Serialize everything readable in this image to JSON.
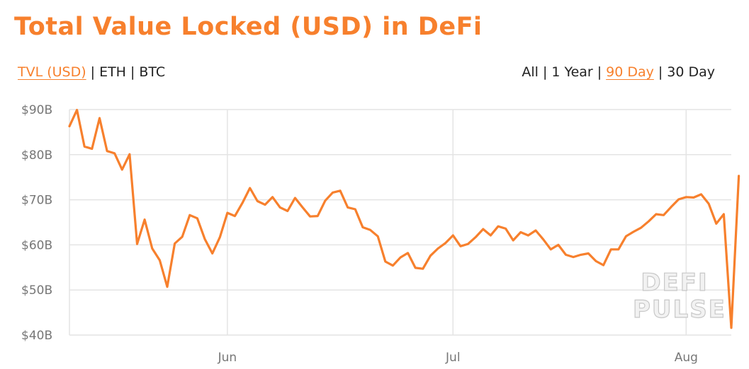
{
  "title": "Total Value Locked (USD) in DeFi",
  "metric_toggles": [
    {
      "label": "TVL (USD)",
      "active": true
    },
    {
      "label": "ETH",
      "active": false
    },
    {
      "label": "BTC",
      "active": false
    }
  ],
  "range_toggles": [
    {
      "label": "All",
      "active": false
    },
    {
      "label": "1 Year",
      "active": false
    },
    {
      "label": "90 Day",
      "active": true
    },
    {
      "label": "30 Day",
      "active": false
    }
  ],
  "separator": "|",
  "watermark": {
    "line1": "DEFI",
    "line2": "PULSE"
  },
  "colors": {
    "accent": "#f7802d",
    "grid": "#e4e4e4",
    "tick": "#777777"
  },
  "chart_data": {
    "type": "line",
    "title": "Total Value Locked (USD) in DeFi",
    "xlabel": "",
    "ylabel": "",
    "x_ticks": [
      {
        "label": "Jun",
        "x": 21
      },
      {
        "label": "Jul",
        "x": 51
      },
      {
        "label": "Aug",
        "x": 82
      }
    ],
    "y_ticks": [
      {
        "label": "$90B",
        "value": 90
      },
      {
        "label": "$80B",
        "value": 80
      },
      {
        "label": "$70B",
        "value": 70
      },
      {
        "label": "$60B",
        "value": 60
      },
      {
        "label": "$50B",
        "value": 50
      },
      {
        "label": "$40B",
        "value": 40
      }
    ],
    "ylim": [
      40,
      90
    ],
    "xlim": [
      0,
      88
    ],
    "grid": true,
    "units": "USD billions",
    "series": [
      {
        "values": [
          86.3,
          89.9,
          81.8,
          81.3,
          88.1,
          80.8,
          80.3,
          76.7,
          80.1,
          60.2,
          65.6,
          59.2,
          56.6,
          50.7,
          60.3,
          61.8,
          66.6,
          65.9,
          61.3,
          58.1,
          61.7,
          67.1,
          66.4,
          69.3,
          72.6,
          69.7,
          68.9,
          70.6,
          68.3,
          67.5,
          70.4,
          68.3,
          66.3,
          66.4,
          69.8,
          71.6,
          72.0,
          68.3,
          67.9,
          63.9,
          63.3,
          61.9,
          56.3,
          55.4,
          57.2,
          58.2,
          54.9,
          54.7,
          57.6,
          59.2,
          60.4,
          62.1,
          59.7,
          60.2,
          61.7,
          63.5,
          62.1,
          64.1,
          63.6,
          61.0,
          62.8,
          62.1,
          63.2,
          61.2,
          59.0,
          60.0,
          57.8,
          57.3,
          57.8,
          58.1,
          56.4,
          55.5,
          59.0,
          59.0,
          61.9,
          62.9,
          63.8,
          65.2,
          66.8,
          66.6,
          68.4,
          70.1,
          70.6,
          70.5,
          71.2,
          69.1,
          64.7,
          66.8,
          41.6,
          75.3
        ]
      }
    ]
  }
}
